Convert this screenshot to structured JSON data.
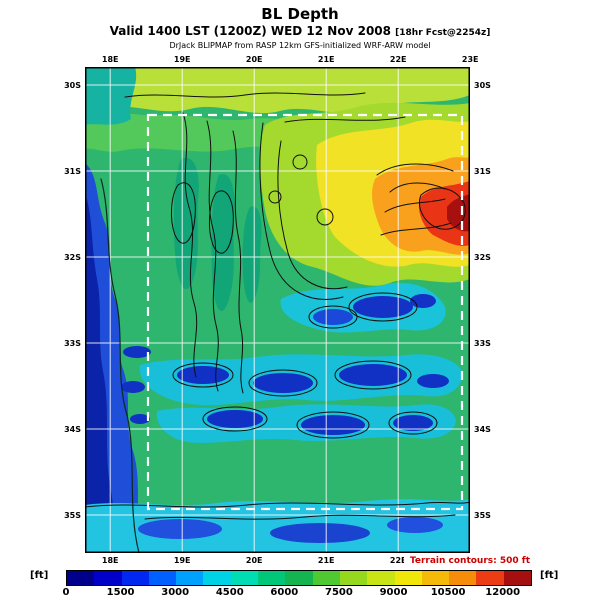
{
  "header": {
    "title": "BL Depth",
    "valid_main": "Valid 1400 LST (1200Z) WED 12 Nov 2008 ",
    "fcst_tag": "[18hr Fcst@2254z]",
    "model_line": "DrJack BLIPMAP from RASP 12km GFS-initialized WRF-ARW model"
  },
  "map": {
    "lon_labels": [
      "18E",
      "19E",
      "20E",
      "21E",
      "22E",
      "23E"
    ],
    "lat_labels": [
      "30S",
      "31S",
      "32S",
      "33S",
      "34S",
      "35S"
    ]
  },
  "colorbar": {
    "unit_left": "[ft]",
    "unit_right": "[ft]",
    "ticks": [
      "0",
      "1500",
      "3000",
      "4500",
      "6000",
      "7500",
      "9000",
      "10500",
      "12000"
    ],
    "colors": [
      "#00008b",
      "#0000c8",
      "#0028f0",
      "#0060ff",
      "#00a0ff",
      "#00d2e6",
      "#00dcb4",
      "#00c878",
      "#14b450",
      "#50c832",
      "#96d81e",
      "#c8e414",
      "#f0e60a",
      "#f5b90a",
      "#f58c0a",
      "#eb3c14",
      "#a50f0f"
    ],
    "terrain_note": "Terrain contours: 500 ft",
    "terrain_note_color": "#cc0000"
  },
  "chart_data": {
    "type": "heatmap",
    "title": "BL Depth",
    "units": "ft",
    "scale_ticks_ft": [
      0,
      1500,
      3000,
      4500,
      6000,
      7500,
      9000,
      10500,
      12000
    ],
    "lon_range": [
      "18E",
      "23E"
    ],
    "lat_range": [
      "30S",
      "35S"
    ],
    "grid": true,
    "legend_position": "bottom",
    "regions": [
      {
        "area": "northeast interior (22E-23E, 31S-32S)",
        "bl_depth_ft": "9000-12000+"
      },
      {
        "area": "north band along 30S",
        "bl_depth_ft": "7500-9000"
      },
      {
        "area": "west coast ocean (18E)",
        "bl_depth_ft": "0-1500"
      },
      {
        "area": "central plateau (19E-21E, 31S-33S)",
        "bl_depth_ft": "4500-6000"
      },
      {
        "area": "east-central valleys (21E-22E, 33S)",
        "bl_depth_ft": "1500-3000"
      },
      {
        "area": "southern valley band (19E-23E, 34S)",
        "bl_depth_ft": "1500-3000"
      },
      {
        "area": "south coast strip (35S)",
        "bl_depth_ft": "3000-4500"
      }
    ]
  }
}
